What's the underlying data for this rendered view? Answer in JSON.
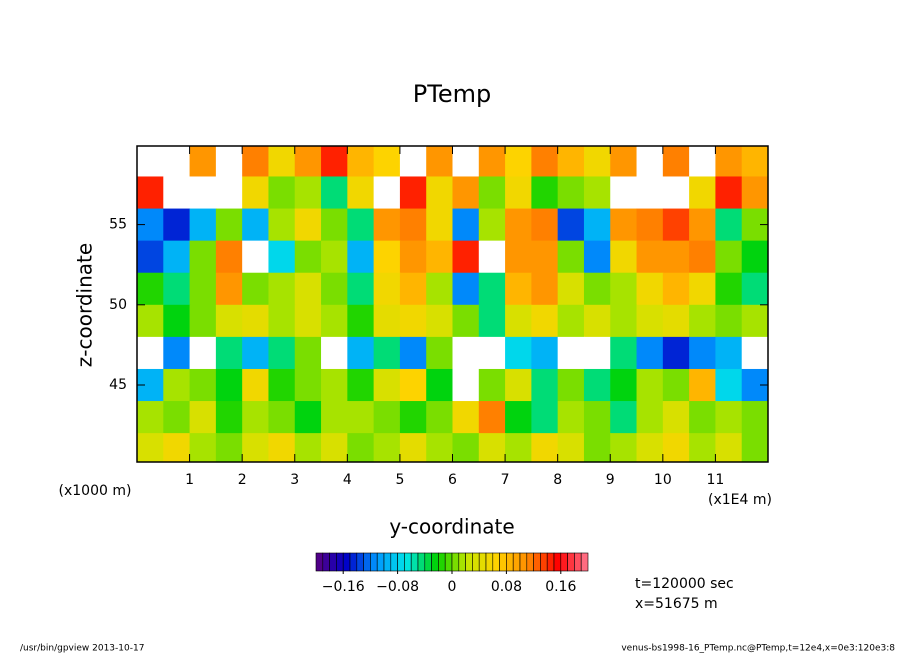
{
  "chart_data": {
    "type": "heatmap",
    "title": "PTemp",
    "x_label": "y-coordinate",
    "y_label": "z-coordinate",
    "x_unit": "(x1E4 m)",
    "y_unit": "(x1000 m)",
    "notes": [
      "t=120000 sec",
      "x=51675 m"
    ],
    "footer_left": "/usr/bin/gpview  2013-10-17",
    "footer_right": "venus-bs1998-16_PTemp.nc@PTemp,t=12e4,x=0e3:120e3:8",
    "xlim": [
      0,
      12
    ],
    "xticks": [
      1,
      2,
      3,
      4,
      5,
      6,
      7,
      8,
      9,
      10,
      11
    ],
    "ylim": [
      40.2,
      59.9
    ],
    "yticks": [
      45,
      50,
      55
    ],
    "x": [
      0.25,
      0.75,
      1.25,
      1.75,
      2.25,
      2.75,
      3.25,
      3.75,
      4.25,
      4.75,
      5.25,
      5.75,
      6.25,
      6.75,
      7.25,
      7.75,
      8.25,
      8.75,
      9.25,
      9.75,
      10.25,
      10.75,
      11.25,
      11.75
    ],
    "y": [
      59,
      57,
      55,
      53,
      51,
      49,
      47,
      45,
      43,
      41
    ],
    "z": [
      [
        0.25,
        0.25,
        0.1,
        0.25,
        0.12,
        0.05,
        0.1,
        0.14,
        0.08,
        0.06,
        0.25,
        0.1,
        0.25,
        0.1,
        0.06,
        0.12,
        0.08,
        0.05,
        0.1,
        0.25,
        0.12,
        0.25,
        0.1,
        0.08
      ],
      [
        0.15,
        0.25,
        0.25,
        0.25,
        0.05,
        0.0,
        0.02,
        -0.05,
        0.05,
        0.25,
        0.15,
        0.05,
        0.1,
        0.0,
        0.05,
        -0.02,
        0.0,
        0.02,
        0.25,
        0.25,
        0.25,
        0.05,
        0.15,
        0.1
      ],
      [
        -0.12,
        -0.15,
        -0.1,
        0.0,
        -0.1,
        0.02,
        0.05,
        0.0,
        -0.05,
        0.1,
        0.12,
        0.05,
        -0.12,
        0.02,
        0.1,
        0.12,
        -0.14,
        -0.1,
        0.1,
        0.12,
        0.13,
        0.1,
        -0.05,
        0.0
      ],
      [
        -0.14,
        -0.1,
        0.0,
        0.12,
        0.25,
        -0.08,
        0.0,
        0.02,
        -0.1,
        0.06,
        0.1,
        0.08,
        0.14,
        0.25,
        0.1,
        0.1,
        0.0,
        -0.12,
        0.05,
        0.1,
        0.1,
        0.12,
        0.0,
        -0.03
      ],
      [
        -0.02,
        -0.05,
        0.0,
        0.1,
        0.0,
        0.02,
        0.03,
        0.0,
        -0.04,
        0.05,
        0.08,
        0.02,
        -0.12,
        -0.05,
        0.08,
        0.1,
        0.03,
        0.0,
        0.02,
        0.05,
        0.08,
        0.05,
        -0.02,
        -0.05
      ],
      [
        0.02,
        -0.03,
        0.0,
        0.03,
        0.04,
        0.02,
        0.03,
        0.02,
        -0.02,
        0.04,
        0.05,
        0.03,
        0.0,
        -0.05,
        0.03,
        0.05,
        0.02,
        0.03,
        0.02,
        0.03,
        0.04,
        0.02,
        0.0,
        0.02
      ],
      [
        0.25,
        -0.12,
        0.25,
        -0.05,
        -0.1,
        -0.05,
        0.0,
        0.25,
        -0.1,
        -0.05,
        -0.12,
        0.0,
        0.25,
        0.25,
        -0.08,
        -0.1,
        0.25,
        0.25,
        -0.05,
        -0.12,
        -0.15,
        -0.12,
        -0.1,
        0.25
      ],
      [
        -0.1,
        0.02,
        0.0,
        -0.03,
        0.05,
        -0.02,
        0.0,
        0.02,
        -0.02,
        0.03,
        0.06,
        -0.03,
        0.25,
        0.0,
        0.03,
        -0.04,
        0.0,
        -0.05,
        -0.03,
        0.02,
        0.0,
        0.08,
        -0.08,
        -0.12
      ],
      [
        0.02,
        0.0,
        0.03,
        -0.02,
        0.02,
        0.0,
        -0.03,
        0.01,
        0.02,
        0.0,
        -0.02,
        0.0,
        0.05,
        0.12,
        -0.03,
        -0.05,
        0.02,
        0.0,
        -0.04,
        0.02,
        0.03,
        0.0,
        0.02,
        0.0
      ],
      [
        0.03,
        0.05,
        0.02,
        0.0,
        0.03,
        0.05,
        0.02,
        0.03,
        0.0,
        0.02,
        0.04,
        0.02,
        0.0,
        0.03,
        0.02,
        0.05,
        0.03,
        0.0,
        0.02,
        0.03,
        0.05,
        0.02,
        0.03,
        0.0
      ]
    ],
    "clim": [
      -0.2,
      0.2
    ],
    "colorbar_ticks": [
      {
        "value": -0.16,
        "label": "−0.16"
      },
      {
        "value": -0.08,
        "label": "−0.08"
      },
      0,
      0.08,
      0.16
    ],
    "colorscale": [
      "#5a0080",
      "#0000c8",
      "#0096ff",
      "#00e6e6",
      "#00d200",
      "#c8e600",
      "#ffd200",
      "#ff8c00",
      "#ff0000",
      "#ff7890"
    ],
    "out_of_range_color": "#ffffff"
  }
}
